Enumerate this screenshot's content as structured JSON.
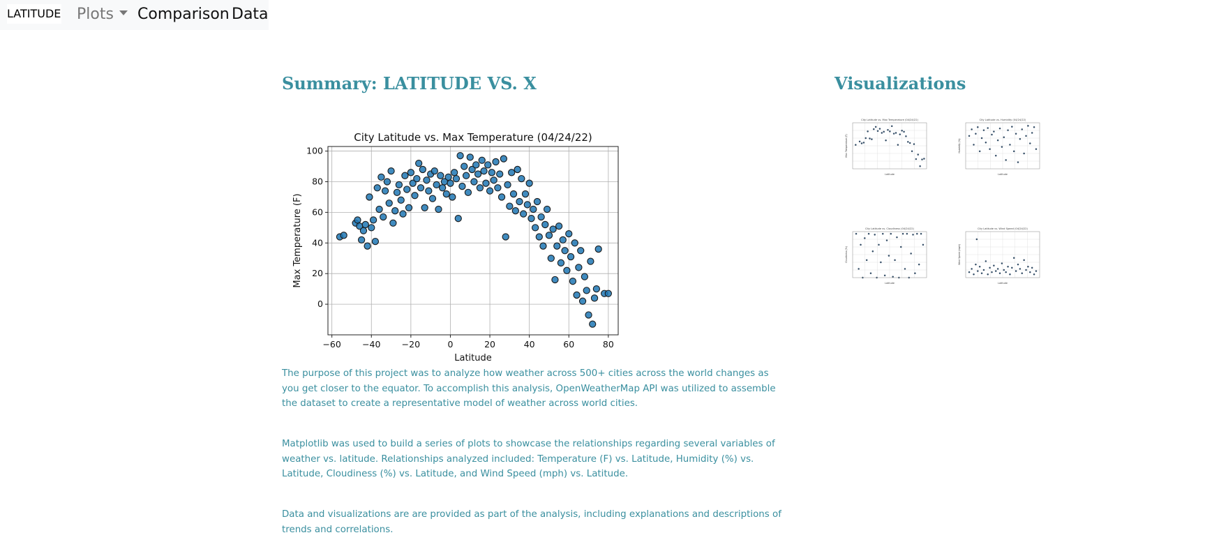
{
  "navbar": {
    "brand": "LATITUDE",
    "plots_label": "Plots",
    "comparison_label": "Comparison",
    "data_label": "Data"
  },
  "summary": {
    "heading": "Summary: LATITUDE VS. X",
    "paragraphs": [
      "The purpose of this project was to analyze how weather across 500+ cities across the world changes as you get closer to the equator. To accomplish this analysis, OpenWeatherMap API was utilized to assemble the dataset to create a representative model of weather across world cities.",
      "Matplotlib was used to build a series of plots to showcase the relationships regarding several variables of weather vs. latitude. Relationships analyzed included: Temperature (F) vs. Latitude, Humidity (%) vs. Latitude, Cloudiness (%) vs. Latitude, and Wind Speed (mph) vs. Latitude.",
      "Data and visualizations are are provided as part of the analysis, including explanations and descriptions of trends and correlations."
    ]
  },
  "visualizations": {
    "heading": "Visualizations"
  },
  "colors": {
    "heading": "#3a8f9f",
    "marker_fill": "#1f77b4",
    "marker_edge": "#1a1a1a",
    "thumb_marker": "#1f3b57"
  },
  "chart_data": [
    {
      "type": "scatter",
      "title": "City Latitude vs. Max Temperature (04/24/22)",
      "xlabel": "Latitude",
      "ylabel": "Max Temperature (F)",
      "xlim": [
        -62,
        85
      ],
      "ylim": [
        -20,
        103
      ],
      "xticks": [
        -60,
        -40,
        -20,
        0,
        20,
        40,
        60,
        80
      ],
      "yticks": [
        0,
        20,
        40,
        60,
        80,
        100
      ],
      "grid": true,
      "points": [
        [
          -56,
          44
        ],
        [
          -54,
          45
        ],
        [
          -48,
          53
        ],
        [
          -47,
          55
        ],
        [
          -46,
          51
        ],
        [
          -45,
          42
        ],
        [
          -44,
          48
        ],
        [
          -43,
          52
        ],
        [
          -42,
          38
        ],
        [
          -41,
          70
        ],
        [
          -40,
          50
        ],
        [
          -39,
          55
        ],
        [
          -38,
          41
        ],
        [
          -37,
          76
        ],
        [
          -36,
          62
        ],
        [
          -35,
          83
        ],
        [
          -34,
          57
        ],
        [
          -33,
          74
        ],
        [
          -32,
          80
        ],
        [
          -31,
          66
        ],
        [
          -30,
          87
        ],
        [
          -29,
          53
        ],
        [
          -28,
          61
        ],
        [
          -27,
          73
        ],
        [
          -26,
          78
        ],
        [
          -25,
          68
        ],
        [
          -24,
          59
        ],
        [
          -23,
          84
        ],
        [
          -22,
          75
        ],
        [
          -21,
          63
        ],
        [
          -20,
          86
        ],
        [
          -19,
          79
        ],
        [
          -18,
          71
        ],
        [
          -17,
          82
        ],
        [
          -16,
          92
        ],
        [
          -15,
          76
        ],
        [
          -14,
          88
        ],
        [
          -13,
          63
        ],
        [
          -12,
          81
        ],
        [
          -11,
          74
        ],
        [
          -10,
          85
        ],
        [
          -9,
          69
        ],
        [
          -8,
          87
        ],
        [
          -7,
          78
        ],
        [
          -6,
          62
        ],
        [
          -5,
          84
        ],
        [
          -4,
          76
        ],
        [
          -3,
          80
        ],
        [
          -2,
          72
        ],
        [
          -1,
          83
        ],
        [
          0,
          79
        ],
        [
          1,
          70
        ],
        [
          2,
          86
        ],
        [
          3,
          82
        ],
        [
          4,
          56
        ],
        [
          5,
          97
        ],
        [
          6,
          77
        ],
        [
          7,
          90
        ],
        [
          8,
          84
        ],
        [
          9,
          73
        ],
        [
          10,
          96
        ],
        [
          11,
          88
        ],
        [
          12,
          80
        ],
        [
          13,
          91
        ],
        [
          14,
          85
        ],
        [
          15,
          76
        ],
        [
          16,
          94
        ],
        [
          17,
          87
        ],
        [
          18,
          79
        ],
        [
          19,
          91
        ],
        [
          20,
          74
        ],
        [
          21,
          86
        ],
        [
          22,
          81
        ],
        [
          23,
          93
        ],
        [
          24,
          76
        ],
        [
          25,
          85
        ],
        [
          26,
          70
        ],
        [
          27,
          95
        ],
        [
          28,
          44
        ],
        [
          29,
          78
        ],
        [
          30,
          64
        ],
        [
          31,
          86
        ],
        [
          32,
          72
        ],
        [
          33,
          61
        ],
        [
          34,
          88
        ],
        [
          35,
          67
        ],
        [
          36,
          82
        ],
        [
          37,
          59
        ],
        [
          38,
          72
        ],
        [
          39,
          65
        ],
        [
          40,
          79
        ],
        [
          41,
          56
        ],
        [
          42,
          62
        ],
        [
          43,
          50
        ],
        [
          44,
          67
        ],
        [
          45,
          44
        ],
        [
          46,
          57
        ],
        [
          47,
          38
        ],
        [
          48,
          52
        ],
        [
          49,
          62
        ],
        [
          50,
          45
        ],
        [
          51,
          30
        ],
        [
          52,
          49
        ],
        [
          53,
          16
        ],
        [
          54,
          38
        ],
        [
          55,
          51
        ],
        [
          56,
          27
        ],
        [
          57,
          42
        ],
        [
          58,
          35
        ],
        [
          59,
          22
        ],
        [
          60,
          46
        ],
        [
          61,
          31
        ],
        [
          62,
          15
        ],
        [
          63,
          40
        ],
        [
          64,
          6
        ],
        [
          65,
          24
        ],
        [
          66,
          35
        ],
        [
          67,
          2
        ],
        [
          68,
          18
        ],
        [
          69,
          9
        ],
        [
          70,
          -7
        ],
        [
          71,
          28
        ],
        [
          72,
          -13
        ],
        [
          73,
          4
        ],
        [
          74,
          10
        ],
        [
          75,
          36
        ],
        [
          78,
          7
        ],
        [
          80,
          7
        ]
      ]
    },
    {
      "type": "scatter",
      "title": "City Latitude vs. Max Temperature (04/24/22)",
      "xlabel": "Latitude",
      "ylabel": "Max Temperature (F)",
      "xlim": [
        -62,
        85
      ],
      "ylim": [
        -20,
        103
      ],
      "points": [
        [
          -56,
          44
        ],
        [
          -48,
          53
        ],
        [
          -44,
          48
        ],
        [
          -40,
          50
        ],
        [
          -36,
          62
        ],
        [
          -32,
          80
        ],
        [
          -28,
          61
        ],
        [
          -24,
          59
        ],
        [
          -20,
          86
        ],
        [
          -16,
          92
        ],
        [
          -12,
          81
        ],
        [
          -8,
          87
        ],
        [
          -4,
          76
        ],
        [
          0,
          79
        ],
        [
          4,
          56
        ],
        [
          8,
          84
        ],
        [
          12,
          80
        ],
        [
          16,
          94
        ],
        [
          20,
          74
        ],
        [
          24,
          76
        ],
        [
          28,
          44
        ],
        [
          32,
          72
        ],
        [
          36,
          82
        ],
        [
          40,
          79
        ],
        [
          44,
          67
        ],
        [
          48,
          52
        ],
        [
          52,
          49
        ],
        [
          56,
          27
        ],
        [
          60,
          46
        ],
        [
          64,
          6
        ],
        [
          68,
          18
        ],
        [
          72,
          -13
        ],
        [
          76,
          5
        ],
        [
          80,
          7
        ]
      ]
    },
    {
      "type": "scatter",
      "title": "City Latitude vs. Humidity (04/24/22)",
      "xlabel": "Latitude",
      "ylabel": "Humidity (%)",
      "xlim": [
        -62,
        85
      ],
      "ylim": [
        0,
        105
      ],
      "points": [
        [
          -55,
          75
        ],
        [
          -50,
          90
        ],
        [
          -46,
          55
        ],
        [
          -42,
          80
        ],
        [
          -38,
          95
        ],
        [
          -34,
          40
        ],
        [
          -30,
          70
        ],
        [
          -26,
          88
        ],
        [
          -22,
          60
        ],
        [
          -18,
          93
        ],
        [
          -14,
          45
        ],
        [
          -10,
          78
        ],
        [
          -6,
          85
        ],
        [
          -2,
          30
        ],
        [
          2,
          65
        ],
        [
          6,
          92
        ],
        [
          10,
          50
        ],
        [
          14,
          72
        ],
        [
          18,
          20
        ],
        [
          22,
          88
        ],
        [
          26,
          55
        ],
        [
          30,
          96
        ],
        [
          34,
          40
        ],
        [
          38,
          80
        ],
        [
          42,
          15
        ],
        [
          46,
          68
        ],
        [
          50,
          90
        ],
        [
          54,
          35
        ],
        [
          58,
          75
        ],
        [
          62,
          98
        ],
        [
          66,
          58
        ],
        [
          70,
          82
        ],
        [
          74,
          95
        ],
        [
          78,
          45
        ]
      ]
    },
    {
      "type": "scatter",
      "title": "City Latitude vs. Cloudiness (04/24/22)",
      "xlabel": "Latitude",
      "ylabel": "Cloudiness (%)",
      "xlim": [
        -62,
        85
      ],
      "ylim": [
        0,
        105
      ],
      "points": [
        [
          -55,
          100
        ],
        [
          -50,
          20
        ],
        [
          -46,
          75
        ],
        [
          -42,
          0
        ],
        [
          -38,
          90
        ],
        [
          -34,
          40
        ],
        [
          -30,
          100
        ],
        [
          -26,
          10
        ],
        [
          -22,
          60
        ],
        [
          -18,
          98
        ],
        [
          -14,
          0
        ],
        [
          -10,
          75
        ],
        [
          -6,
          35
        ],
        [
          -2,
          100
        ],
        [
          2,
          5
        ],
        [
          6,
          85
        ],
        [
          10,
          50
        ],
        [
          14,
          100
        ],
        [
          18,
          2
        ],
        [
          22,
          40
        ],
        [
          26,
          92
        ],
        [
          30,
          0
        ],
        [
          34,
          70
        ],
        [
          38,
          100
        ],
        [
          42,
          20
        ],
        [
          46,
          100
        ],
        [
          50,
          0
        ],
        [
          54,
          55
        ],
        [
          58,
          98
        ],
        [
          62,
          10
        ],
        [
          66,
          100
        ],
        [
          70,
          30
        ],
        [
          74,
          100
        ],
        [
          78,
          75
        ]
      ]
    },
    {
      "type": "scatter",
      "title": "City Latitude vs. Wind Speed (04/24/22)",
      "xlabel": "Latitude",
      "ylabel": "Wind Speed (mph)",
      "xlim": [
        -62,
        85
      ],
      "ylim": [
        0,
        42
      ],
      "points": [
        [
          -55,
          5
        ],
        [
          -50,
          8
        ],
        [
          -46,
          3
        ],
        [
          -42,
          12
        ],
        [
          -40,
          35
        ],
        [
          -38,
          6
        ],
        [
          -34,
          10
        ],
        [
          -30,
          4
        ],
        [
          -26,
          7
        ],
        [
          -22,
          15
        ],
        [
          -18,
          3
        ],
        [
          -14,
          9
        ],
        [
          -10,
          5
        ],
        [
          -6,
          11
        ],
        [
          -2,
          6
        ],
        [
          2,
          8
        ],
        [
          6,
          4
        ],
        [
          10,
          13
        ],
        [
          14,
          7
        ],
        [
          18,
          5
        ],
        [
          22,
          10
        ],
        [
          26,
          3
        ],
        [
          30,
          9
        ],
        [
          34,
          18
        ],
        [
          38,
          6
        ],
        [
          42,
          12
        ],
        [
          46,
          8
        ],
        [
          50,
          4
        ],
        [
          54,
          16
        ],
        [
          58,
          7
        ],
        [
          62,
          10
        ],
        [
          66,
          5
        ],
        [
          70,
          9
        ],
        [
          74,
          3
        ],
        [
          78,
          6
        ]
      ]
    }
  ]
}
